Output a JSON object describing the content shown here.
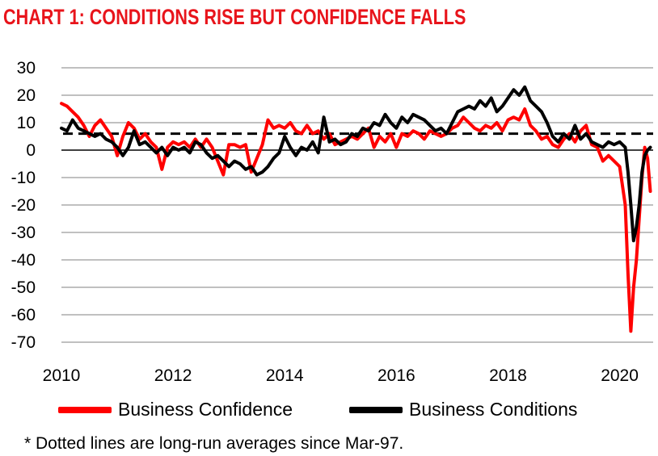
{
  "chart_data": {
    "type": "line",
    "title": "CHART 1: CONDITIONS RISE BUT CONFIDENCE FALLS",
    "xlabel": "",
    "ylabel": "",
    "xlim": [
      2010,
      2020.6
    ],
    "ylim": [
      -70,
      30
    ],
    "yticks": [
      30,
      20,
      10,
      0,
      -10,
      -20,
      -30,
      -40,
      -50,
      -60,
      -70
    ],
    "xticks": [
      2010,
      2012,
      2014,
      2016,
      2018,
      2020
    ],
    "grid": true,
    "legend_position": "bottom",
    "series": [
      {
        "name": "Business Confidence",
        "color": "#ff0000",
        "long_run_average": 5,
        "points": [
          [
            2010.0,
            17
          ],
          [
            2010.1,
            16
          ],
          [
            2010.2,
            14
          ],
          [
            2010.3,
            12
          ],
          [
            2010.4,
            9
          ],
          [
            2010.5,
            5
          ],
          [
            2010.6,
            9
          ],
          [
            2010.7,
            11
          ],
          [
            2010.8,
            8
          ],
          [
            2010.9,
            5
          ],
          [
            2011.0,
            -2
          ],
          [
            2011.1,
            5
          ],
          [
            2011.2,
            10
          ],
          [
            2011.3,
            8
          ],
          [
            2011.4,
            4
          ],
          [
            2011.5,
            6
          ],
          [
            2011.6,
            3
          ],
          [
            2011.7,
            1
          ],
          [
            2011.8,
            -7
          ],
          [
            2011.9,
            1
          ],
          [
            2012.0,
            3
          ],
          [
            2012.1,
            2
          ],
          [
            2012.2,
            3
          ],
          [
            2012.3,
            1
          ],
          [
            2012.4,
            4
          ],
          [
            2012.5,
            1
          ],
          [
            2012.6,
            4
          ],
          [
            2012.7,
            1
          ],
          [
            2012.8,
            -4
          ],
          [
            2012.9,
            -9
          ],
          [
            2013.0,
            2
          ],
          [
            2013.1,
            2
          ],
          [
            2013.2,
            1
          ],
          [
            2013.3,
            2
          ],
          [
            2013.4,
            -8
          ],
          [
            2013.5,
            -3
          ],
          [
            2013.6,
            2
          ],
          [
            2013.7,
            11
          ],
          [
            2013.8,
            8
          ],
          [
            2013.9,
            9
          ],
          [
            2014.0,
            8
          ],
          [
            2014.1,
            10
          ],
          [
            2014.2,
            7
          ],
          [
            2014.3,
            6
          ],
          [
            2014.4,
            9
          ],
          [
            2014.5,
            6
          ],
          [
            2014.6,
            7
          ],
          [
            2014.7,
            4
          ],
          [
            2014.8,
            6
          ],
          [
            2014.9,
            2
          ],
          [
            2015.0,
            3
          ],
          [
            2015.1,
            4
          ],
          [
            2015.2,
            5
          ],
          [
            2015.3,
            4
          ],
          [
            2015.4,
            6
          ],
          [
            2015.5,
            8
          ],
          [
            2015.6,
            1
          ],
          [
            2015.7,
            5
          ],
          [
            2015.8,
            3
          ],
          [
            2015.9,
            6
          ],
          [
            2016.0,
            1
          ],
          [
            2016.1,
            6
          ],
          [
            2016.2,
            5
          ],
          [
            2016.3,
            7
          ],
          [
            2016.4,
            6
          ],
          [
            2016.5,
            4
          ],
          [
            2016.6,
            7
          ],
          [
            2016.7,
            6
          ],
          [
            2016.8,
            5
          ],
          [
            2016.9,
            6
          ],
          [
            2017.0,
            8
          ],
          [
            2017.1,
            9
          ],
          [
            2017.2,
            12
          ],
          [
            2017.3,
            10
          ],
          [
            2017.4,
            8
          ],
          [
            2017.5,
            7
          ],
          [
            2017.6,
            9
          ],
          [
            2017.7,
            8
          ],
          [
            2017.8,
            10
          ],
          [
            2017.9,
            7
          ],
          [
            2018.0,
            11
          ],
          [
            2018.1,
            12
          ],
          [
            2018.2,
            11
          ],
          [
            2018.3,
            15
          ],
          [
            2018.4,
            9
          ],
          [
            2018.5,
            7
          ],
          [
            2018.6,
            4
          ],
          [
            2018.7,
            5
          ],
          [
            2018.8,
            2
          ],
          [
            2018.9,
            1
          ],
          [
            2019.0,
            4
          ],
          [
            2019.1,
            6
          ],
          [
            2019.2,
            3
          ],
          [
            2019.3,
            7
          ],
          [
            2019.4,
            9
          ],
          [
            2019.5,
            2
          ],
          [
            2019.6,
            1
          ],
          [
            2019.7,
            -4
          ],
          [
            2019.8,
            -2
          ],
          [
            2019.9,
            -4
          ],
          [
            2020.0,
            -6
          ],
          [
            2020.1,
            -20
          ],
          [
            2020.15,
            -45
          ],
          [
            2020.2,
            -66
          ],
          [
            2020.25,
            -50
          ],
          [
            2020.3,
            -40
          ],
          [
            2020.35,
            -25
          ],
          [
            2020.4,
            -10
          ],
          [
            2020.45,
            1
          ],
          [
            2020.5,
            -3
          ],
          [
            2020.55,
            -15
          ]
        ]
      },
      {
        "name": "Business Conditions",
        "color": "#000000",
        "long_run_average": 6,
        "points": [
          [
            2010.0,
            8
          ],
          [
            2010.1,
            7
          ],
          [
            2010.2,
            11
          ],
          [
            2010.3,
            8
          ],
          [
            2010.4,
            7
          ],
          [
            2010.5,
            6
          ],
          [
            2010.6,
            5
          ],
          [
            2010.7,
            6
          ],
          [
            2010.8,
            4
          ],
          [
            2010.9,
            3
          ],
          [
            2011.0,
            1
          ],
          [
            2011.1,
            -2
          ],
          [
            2011.2,
            1
          ],
          [
            2011.3,
            7
          ],
          [
            2011.4,
            2
          ],
          [
            2011.5,
            3
          ],
          [
            2011.6,
            1
          ],
          [
            2011.7,
            -1
          ],
          [
            2011.8,
            1
          ],
          [
            2011.9,
            -2
          ],
          [
            2012.0,
            1
          ],
          [
            2012.1,
            0
          ],
          [
            2012.2,
            1
          ],
          [
            2012.3,
            -1
          ],
          [
            2012.4,
            3
          ],
          [
            2012.5,
            2
          ],
          [
            2012.6,
            -1
          ],
          [
            2012.7,
            -3
          ],
          [
            2012.8,
            -2
          ],
          [
            2012.9,
            -4
          ],
          [
            2013.0,
            -6
          ],
          [
            2013.1,
            -4
          ],
          [
            2013.2,
            -5
          ],
          [
            2013.3,
            -7
          ],
          [
            2013.4,
            -6
          ],
          [
            2013.5,
            -9
          ],
          [
            2013.6,
            -8
          ],
          [
            2013.7,
            -6
          ],
          [
            2013.8,
            -3
          ],
          [
            2013.9,
            -1
          ],
          [
            2014.0,
            5
          ],
          [
            2014.1,
            1
          ],
          [
            2014.2,
            -2
          ],
          [
            2014.3,
            1
          ],
          [
            2014.4,
            0
          ],
          [
            2014.5,
            3
          ],
          [
            2014.6,
            -1
          ],
          [
            2014.7,
            12
          ],
          [
            2014.8,
            3
          ],
          [
            2014.9,
            4
          ],
          [
            2015.0,
            2
          ],
          [
            2015.1,
            3
          ],
          [
            2015.2,
            6
          ],
          [
            2015.3,
            5
          ],
          [
            2015.4,
            8
          ],
          [
            2015.5,
            7
          ],
          [
            2015.6,
            10
          ],
          [
            2015.7,
            9
          ],
          [
            2015.8,
            13
          ],
          [
            2015.9,
            10
          ],
          [
            2016.0,
            8
          ],
          [
            2016.1,
            12
          ],
          [
            2016.2,
            10
          ],
          [
            2016.3,
            13
          ],
          [
            2016.4,
            12
          ],
          [
            2016.5,
            11
          ],
          [
            2016.6,
            9
          ],
          [
            2016.7,
            7
          ],
          [
            2016.8,
            8
          ],
          [
            2016.9,
            6
          ],
          [
            2017.0,
            10
          ],
          [
            2017.1,
            14
          ],
          [
            2017.2,
            15
          ],
          [
            2017.3,
            16
          ],
          [
            2017.4,
            15
          ],
          [
            2017.5,
            18
          ],
          [
            2017.6,
            16
          ],
          [
            2017.7,
            19
          ],
          [
            2017.8,
            14
          ],
          [
            2017.9,
            16
          ],
          [
            2018.0,
            19
          ],
          [
            2018.1,
            22
          ],
          [
            2018.2,
            20
          ],
          [
            2018.3,
            23
          ],
          [
            2018.4,
            18
          ],
          [
            2018.5,
            16
          ],
          [
            2018.6,
            14
          ],
          [
            2018.7,
            10
          ],
          [
            2018.8,
            5
          ],
          [
            2018.9,
            3
          ],
          [
            2019.0,
            6
          ],
          [
            2019.1,
            4
          ],
          [
            2019.2,
            9
          ],
          [
            2019.3,
            4
          ],
          [
            2019.4,
            6
          ],
          [
            2019.5,
            3
          ],
          [
            2019.6,
            2
          ],
          [
            2019.7,
            1
          ],
          [
            2019.8,
            3
          ],
          [
            2019.9,
            2
          ],
          [
            2020.0,
            3
          ],
          [
            2020.1,
            1
          ],
          [
            2020.15,
            -8
          ],
          [
            2020.2,
            -20
          ],
          [
            2020.25,
            -33
          ],
          [
            2020.3,
            -28
          ],
          [
            2020.35,
            -20
          ],
          [
            2020.4,
            -8
          ],
          [
            2020.45,
            -2
          ],
          [
            2020.5,
            0
          ],
          [
            2020.55,
            1
          ]
        ]
      }
    ]
  },
  "footnote": "* Dotted lines are long-run averages since Mar-97."
}
